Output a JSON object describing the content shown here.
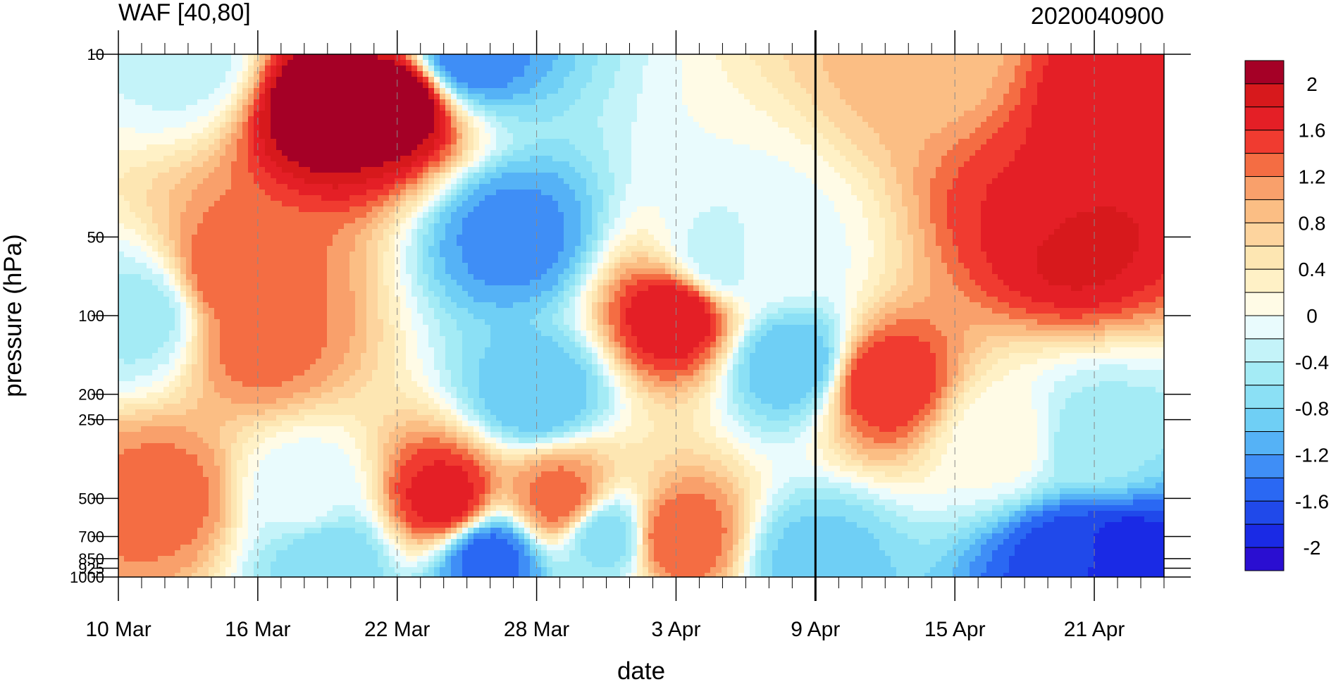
{
  "chart_data": {
    "type": "heatmap",
    "subtype": "filled-contour (time-pressure cross section)",
    "title_left": "WAF [40,80]",
    "title_right": "2020040900",
    "xlabel": "date",
    "ylabel": "pressure (hPa)",
    "x_ticks": [
      "10 Mar",
      "16 Mar",
      "22 Mar",
      "28 Mar",
      "3 Apr",
      "9 Apr",
      "15 Apr",
      "21 Apr"
    ],
    "x_tick_days": [
      0,
      6,
      12,
      18,
      24,
      30,
      36,
      42
    ],
    "x_range_days": [
      0,
      45
    ],
    "y_ticks": [
      "10",
      "50",
      "100",
      "200",
      "250",
      "500",
      "700",
      "850",
      "925",
      "1000"
    ],
    "y_tick_values": [
      10,
      50,
      100,
      200,
      250,
      500,
      700,
      850,
      925,
      1000
    ],
    "y_range": [
      1000,
      10
    ],
    "y_scale": "log",
    "marker_day": 30,
    "colorbar": {
      "labels": [
        "2",
        "1.6",
        "1.2",
        "0.8",
        "0.4",
        "0",
        "-0.4",
        "-0.8",
        "-1.2",
        "-1.6",
        "-2"
      ],
      "label_values": [
        2,
        1.6,
        1.2,
        0.8,
        0.4,
        0,
        -0.4,
        -0.8,
        -1.2,
        -1.6,
        -2
      ],
      "bins": [
        {
          "min": 2.0,
          "max": null,
          "color": "#a50026"
        },
        {
          "min": 1.8,
          "max": 2.0,
          "color": "#d7191c"
        },
        {
          "min": 1.6,
          "max": 1.8,
          "color": "#e41f26"
        },
        {
          "min": 1.4,
          "max": 1.6,
          "color": "#f03b30"
        },
        {
          "min": 1.2,
          "max": 1.4,
          "color": "#f46d43"
        },
        {
          "min": 1.0,
          "max": 1.2,
          "color": "#f9a06b"
        },
        {
          "min": 0.8,
          "max": 1.0,
          "color": "#fbbe84"
        },
        {
          "min": 0.6,
          "max": 0.8,
          "color": "#fdd49e"
        },
        {
          "min": 0.4,
          "max": 0.6,
          "color": "#fde6b2"
        },
        {
          "min": 0.2,
          "max": 0.4,
          "color": "#fff1c6"
        },
        {
          "min": 0.0,
          "max": 0.2,
          "color": "#fffbe6"
        },
        {
          "min": -0.2,
          "max": 0.0,
          "color": "#e9fbfd"
        },
        {
          "min": -0.4,
          "max": -0.2,
          "color": "#c4f3f9"
        },
        {
          "min": -0.6,
          "max": -0.4,
          "color": "#a4ebf5"
        },
        {
          "min": -0.8,
          "max": -0.6,
          "color": "#8be0f5"
        },
        {
          "min": -1.0,
          "max": -0.8,
          "color": "#6fcff5"
        },
        {
          "min": -1.2,
          "max": -1.0,
          "color": "#55b2f6"
        },
        {
          "min": -1.4,
          "max": -1.2,
          "color": "#3f8ef6"
        },
        {
          "min": -1.6,
          "max": -1.4,
          "color": "#2a68f3"
        },
        {
          "min": -1.8,
          "max": -1.6,
          "color": "#2049ea"
        },
        {
          "min": -2.0,
          "max": -1.8,
          "color": "#1a2ae5"
        },
        {
          "min": null,
          "max": -2.0,
          "color": "#2a0ed1"
        }
      ]
    },
    "features": [
      {
        "day": 3,
        "p": 10,
        "v": -0.3
      },
      {
        "day": 1,
        "p": 100,
        "v": -0.5
      },
      {
        "day": 2,
        "p": 500,
        "v": 1.3
      },
      {
        "day": 5,
        "p": 70,
        "v": 1.4
      },
      {
        "day": 6,
        "p": 120,
        "v": 1.3
      },
      {
        "day": 9,
        "p": 15,
        "v": 2.3
      },
      {
        "day": 12,
        "p": 15,
        "v": 2.3
      },
      {
        "day": 8,
        "p": 500,
        "v": -0.15
      },
      {
        "day": 9,
        "p": 850,
        "v": -0.8
      },
      {
        "day": 14,
        "p": 500,
        "v": 1.7
      },
      {
        "day": 15,
        "p": 10,
        "v": -1.4
      },
      {
        "day": 17,
        "p": 50,
        "v": -1.3
      },
      {
        "day": 18,
        "p": 200,
        "v": -1.0
      },
      {
        "day": 16,
        "p": 850,
        "v": -1.5
      },
      {
        "day": 19,
        "p": 500,
        "v": 1.3
      },
      {
        "day": 21,
        "p": 700,
        "v": -0.7
      },
      {
        "day": 24,
        "p": 100,
        "v": 1.8
      },
      {
        "day": 24,
        "p": 700,
        "v": 1.4
      },
      {
        "day": 26,
        "p": 60,
        "v": -0.3
      },
      {
        "day": 28,
        "p": 60,
        "v": -0.1
      },
      {
        "day": 29,
        "p": 150,
        "v": -1.0
      },
      {
        "day": 30,
        "p": 900,
        "v": -0.9
      },
      {
        "day": 33,
        "p": 180,
        "v": 1.6
      },
      {
        "day": 35,
        "p": 10,
        "v": 0.9
      },
      {
        "day": 40,
        "p": 40,
        "v": 1.6
      },
      {
        "day": 41,
        "p": 50,
        "v": 1.9
      },
      {
        "day": 43,
        "p": 15,
        "v": 1.8
      },
      {
        "day": 38,
        "p": 300,
        "v": 0.1
      },
      {
        "day": 42,
        "p": 300,
        "v": -0.5
      },
      {
        "day": 43,
        "p": 900,
        "v": -2.0
      },
      {
        "day": 41,
        "p": 850,
        "v": -1.7
      }
    ]
  }
}
